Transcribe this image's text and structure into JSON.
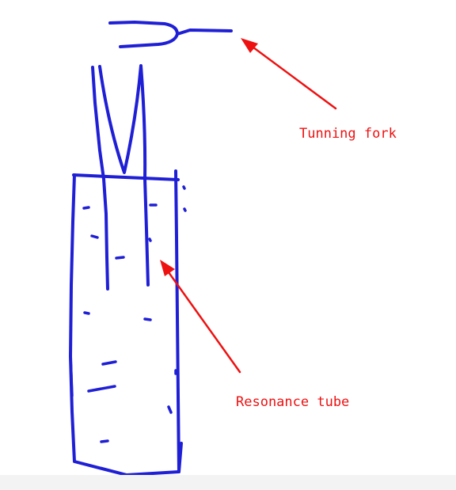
{
  "labels": {
    "tuning_fork": "Tunning fork",
    "resonance_tube": "Resonance tube"
  },
  "colors": {
    "sketch": "#1f1fd6",
    "annotation": "#ee1111",
    "background": "#ffffff",
    "bottom_strip": "#f3f3f3"
  }
}
